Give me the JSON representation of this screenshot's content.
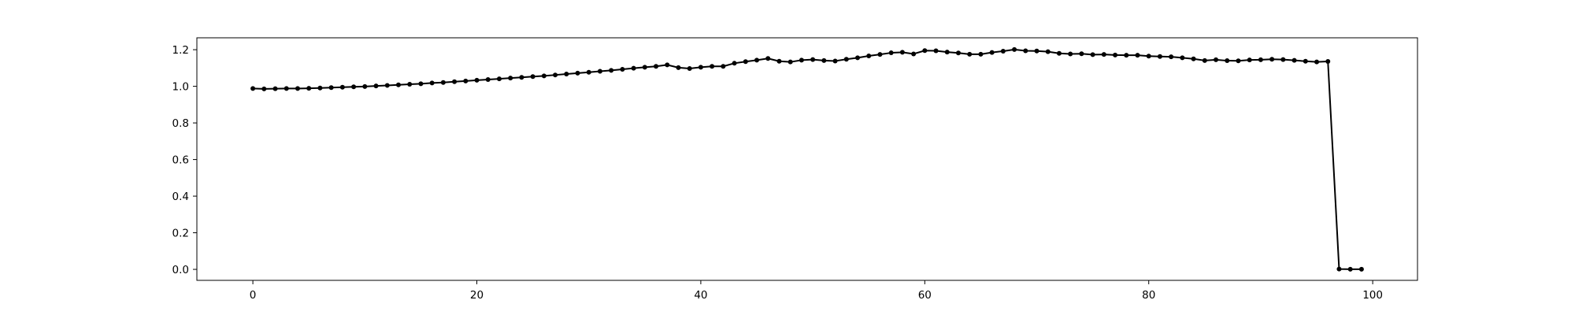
{
  "chart_data": {
    "type": "line",
    "title": "",
    "xlabel": "",
    "ylabel": "",
    "xlim": [
      -5,
      104
    ],
    "ylim": [
      -0.06,
      1.265
    ],
    "grid": false,
    "marker": "dot",
    "line_color": "#000000",
    "x_ticks": [
      0,
      20,
      40,
      60,
      80,
      100
    ],
    "y_ticks": [
      0.0,
      0.2,
      0.4,
      0.6,
      0.8,
      1.0,
      1.2
    ],
    "x_tick_labels": [
      "0",
      "20",
      "40",
      "60",
      "80",
      "100"
    ],
    "y_tick_labels": [
      "0.0",
      "0.2",
      "0.4",
      "0.6",
      "0.8",
      "1.0",
      "1.2"
    ],
    "series": [
      {
        "values": [
          0.988,
          0.986,
          0.987,
          0.988,
          0.988,
          0.989,
          0.991,
          0.993,
          0.995,
          0.997,
          0.999,
          1.002,
          1.005,
          1.008,
          1.011,
          1.014,
          1.018,
          1.021,
          1.025,
          1.029,
          1.033,
          1.037,
          1.041,
          1.045,
          1.049,
          1.053,
          1.057,
          1.062,
          1.067,
          1.072,
          1.077,
          1.082,
          1.087,
          1.093,
          1.099,
          1.104,
          1.109,
          1.117,
          1.102,
          1.097,
          1.104,
          1.109,
          1.109,
          1.126,
          1.135,
          1.143,
          1.152,
          1.137,
          1.133,
          1.143,
          1.146,
          1.141,
          1.138,
          1.148,
          1.156,
          1.166,
          1.174,
          1.183,
          1.186,
          1.177,
          1.195,
          1.194,
          1.187,
          1.182,
          1.175,
          1.175,
          1.185,
          1.192,
          1.201,
          1.194,
          1.193,
          1.189,
          1.18,
          1.177,
          1.178,
          1.173,
          1.174,
          1.171,
          1.17,
          1.17,
          1.165,
          1.163,
          1.161,
          1.156,
          1.15,
          1.141,
          1.145,
          1.14,
          1.139,
          1.144,
          1.145,
          1.148,
          1.146,
          1.142,
          1.137,
          1.133,
          1.136,
          0.002,
          0.001,
          0.001
        ]
      }
    ]
  }
}
